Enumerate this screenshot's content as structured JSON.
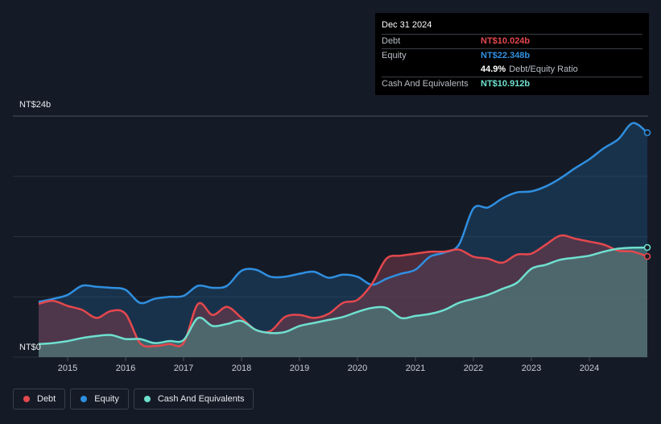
{
  "tooltip": {
    "date": "Dec 31 2024",
    "debt_label": "Debt",
    "debt_value": "NT$10.024b",
    "equity_label": "Equity",
    "equity_value": "NT$22.348b",
    "ratio_value": "44.9%",
    "ratio_label": "Debt/Equity Ratio",
    "cash_label": "Cash And Equivalents",
    "cash_value": "NT$10.912b"
  },
  "axis": {
    "y_top_label": "NT$24b",
    "y_bottom_label": "NT$0"
  },
  "legend": {
    "debt": "Debt",
    "equity": "Equity",
    "cash": "Cash And Equivalents"
  },
  "colors": {
    "debt": "#e5484d",
    "equity": "#2f8fe0",
    "cash": "#6fe0cf",
    "background": "#151b26"
  },
  "chart_data": {
    "type": "area",
    "ylim": [
      0,
      24
    ],
    "y_unit": "NT$ billions",
    "x_tick_labels": [
      "2015",
      "2016",
      "2017",
      "2018",
      "2019",
      "2020",
      "2021",
      "2022",
      "2023",
      "2024"
    ],
    "x": [
      2014.5,
      2014.75,
      2015.0,
      2015.25,
      2015.5,
      2015.75,
      2016.0,
      2016.25,
      2016.5,
      2016.75,
      2017.0,
      2017.25,
      2017.5,
      2017.75,
      2018.0,
      2018.25,
      2018.5,
      2018.75,
      2019.0,
      2019.25,
      2019.5,
      2019.75,
      2020.0,
      2020.25,
      2020.5,
      2020.75,
      2021.0,
      2021.25,
      2021.5,
      2021.75,
      2022.0,
      2022.25,
      2022.5,
      2022.75,
      2023.0,
      2023.25,
      2023.5,
      2023.75,
      2024.0,
      2024.25,
      2024.5,
      2024.75,
      2025.0
    ],
    "series": [
      {
        "name": "Debt",
        "values": [
          5.3,
          5.6,
          5.1,
          4.7,
          3.9,
          4.6,
          4.3,
          1.4,
          1.1,
          1.3,
          1.4,
          5.3,
          4.2,
          5.0,
          3.9,
          2.7,
          2.6,
          4.0,
          4.2,
          3.9,
          4.3,
          5.4,
          5.7,
          7.3,
          9.8,
          10.1,
          10.3,
          10.5,
          10.5,
          10.7,
          10.0,
          9.8,
          9.4,
          10.2,
          10.3,
          11.2,
          12.1,
          11.8,
          11.5,
          11.2,
          10.6,
          10.5,
          10.024
        ]
      },
      {
        "name": "Equity",
        "values": [
          5.5,
          5.8,
          6.2,
          7.1,
          7.0,
          6.9,
          6.7,
          5.4,
          5.8,
          6.0,
          6.1,
          7.1,
          6.9,
          7.1,
          8.6,
          8.7,
          8.0,
          8.0,
          8.3,
          8.5,
          7.9,
          8.2,
          8.0,
          7.2,
          7.8,
          8.3,
          8.7,
          10.0,
          10.4,
          11.2,
          14.8,
          14.9,
          15.8,
          16.4,
          16.5,
          17.0,
          17.8,
          18.8,
          19.7,
          20.8,
          21.7,
          23.3,
          22.348
        ]
      },
      {
        "name": "Cash And Equivalents",
        "values": [
          1.3,
          1.4,
          1.6,
          1.9,
          2.1,
          2.2,
          1.8,
          1.8,
          1.4,
          1.6,
          1.7,
          3.9,
          3.1,
          3.3,
          3.6,
          2.7,
          2.4,
          2.5,
          3.1,
          3.4,
          3.7,
          4.0,
          4.5,
          4.9,
          4.9,
          3.9,
          4.1,
          4.3,
          4.7,
          5.4,
          5.8,
          6.2,
          6.8,
          7.4,
          8.8,
          9.2,
          9.7,
          9.9,
          10.1,
          10.5,
          10.8,
          10.9,
          10.912
        ]
      }
    ]
  }
}
